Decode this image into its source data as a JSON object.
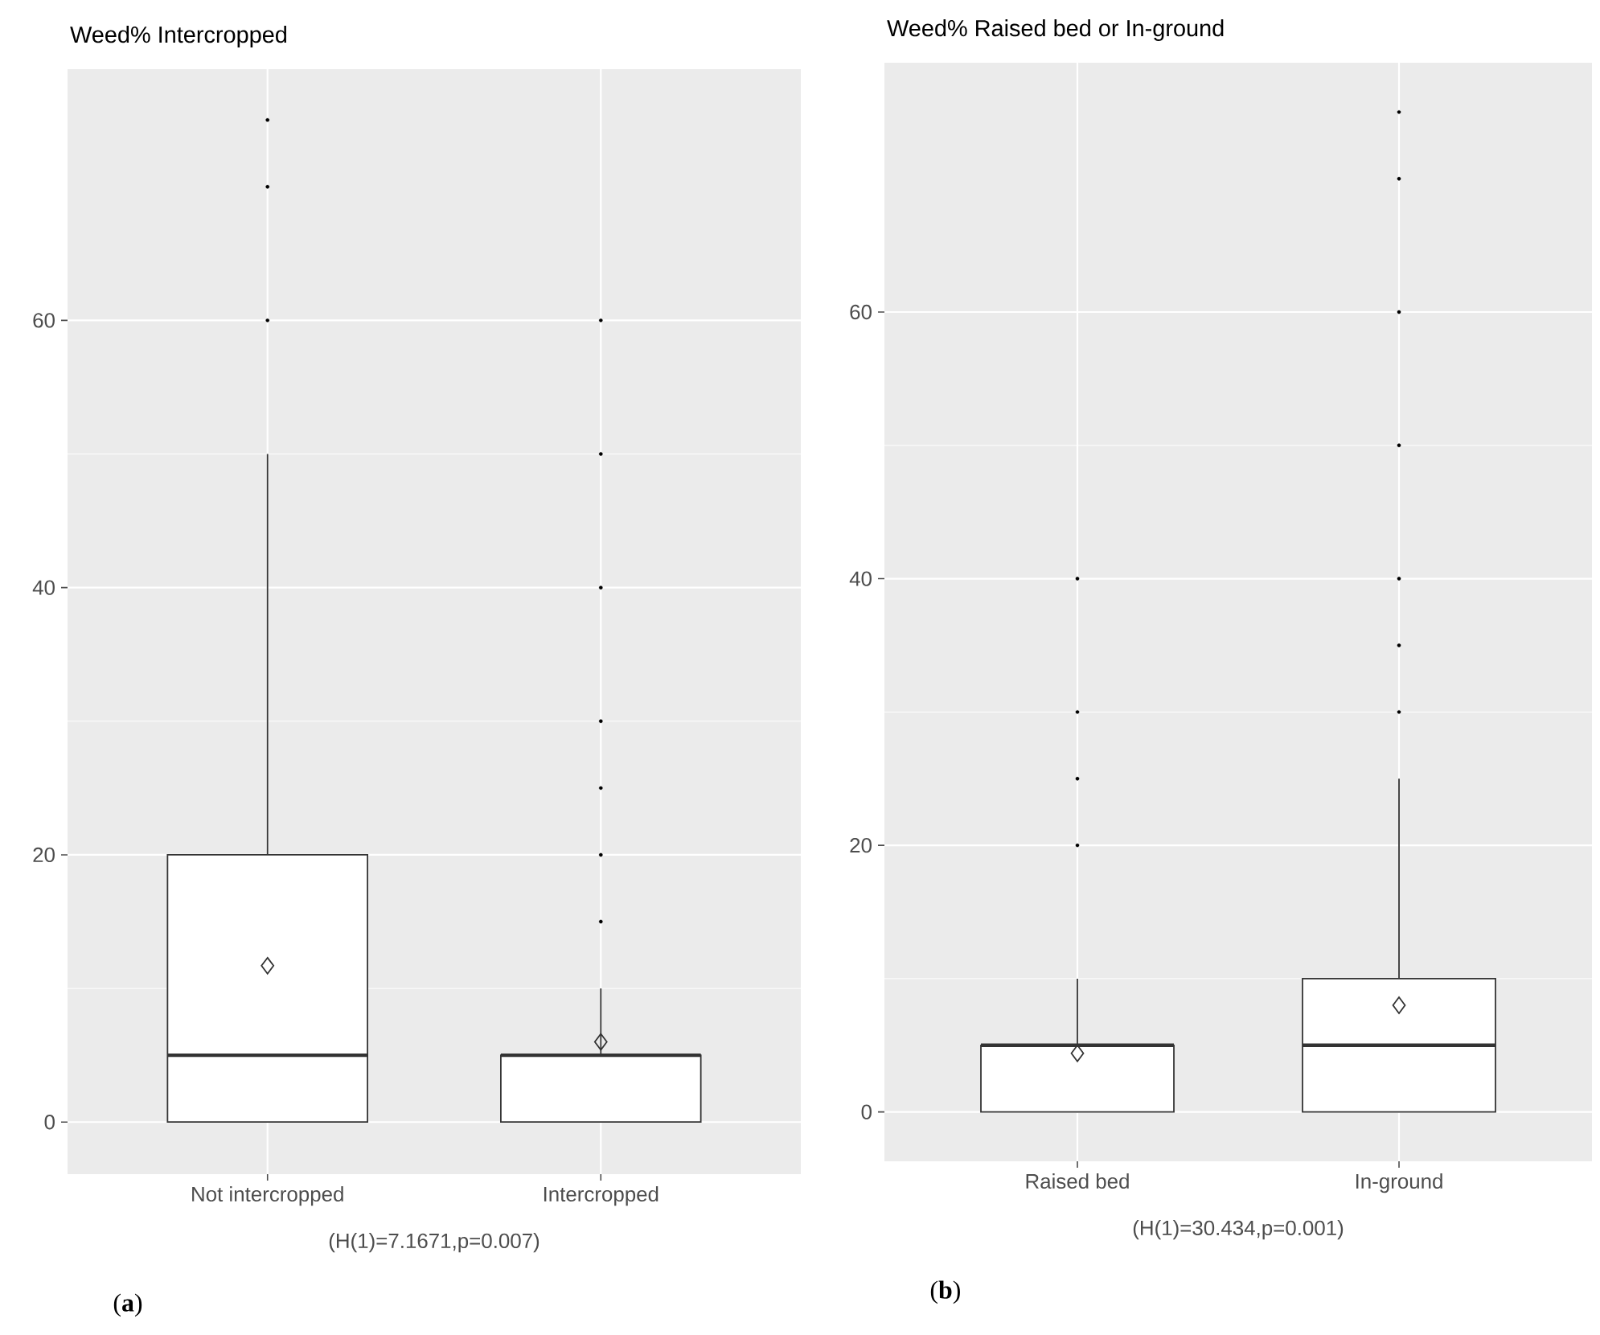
{
  "chart_data": [
    {
      "type": "box",
      "title": "Weed% Intercropped",
      "categories": [
        "Not intercropped",
        "Intercropped"
      ],
      "boxes": [
        {
          "low": 0,
          "q1": 0,
          "median": 5,
          "q3": 20,
          "high": 50,
          "mean": 11.7,
          "outliers": [
            60,
            70,
            75
          ]
        },
        {
          "low": 0,
          "q1": 0,
          "median": 5,
          "q3": 5,
          "high": 10,
          "mean": 6,
          "outliers": [
            15,
            20,
            25,
            30,
            40,
            50,
            60
          ]
        }
      ],
      "ylim": [
        -3.9,
        78.8
      ],
      "yticks": [
        0,
        20,
        40,
        60
      ],
      "grid": true,
      "annotations": [
        "(H(1)=7.1671,p=0.007)",
        "(**a**)"
      ]
    },
    {
      "type": "box",
      "title": "Weed% Raised bed or In-ground",
      "categories": [
        "Raised bed",
        "In-ground"
      ],
      "boxes": [
        {
          "low": 0,
          "q1": 0,
          "median": 5,
          "q3": 5,
          "high": 10,
          "mean": 4.4,
          "outliers": [
            20,
            25,
            30,
            40
          ]
        },
        {
          "low": 0,
          "q1": 0,
          "median": 5,
          "q3": 10,
          "high": 25,
          "mean": 8,
          "outliers": [
            30,
            35,
            40,
            50,
            60,
            70,
            75
          ]
        }
      ],
      "ylim": [
        -3.7,
        78.7
      ],
      "yticks": [
        0,
        20,
        40,
        60
      ],
      "grid": true,
      "annotations": [
        "(H(1)=30.434,p=0.001)",
        "(**b**)"
      ]
    }
  ]
}
